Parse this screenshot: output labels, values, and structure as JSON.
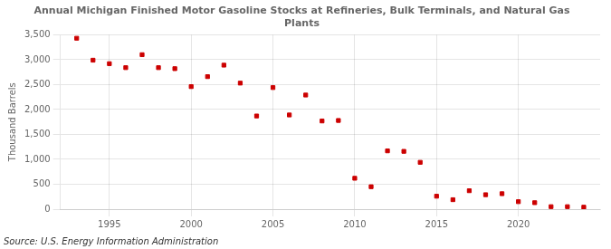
{
  "chart_data": {
    "type": "scatter",
    "title": "Annual Michigan Finished Motor Gasoline Stocks at Refineries, Bulk Terminals, and Natural Gas\nPlants",
    "y_label": "Thousand Barrels",
    "source": "Source: U.S. Energy Information Administration",
    "x": [
      1993,
      1994,
      1995,
      1996,
      1997,
      1998,
      1999,
      2000,
      2001,
      2002,
      2003,
      2004,
      2005,
      2006,
      2007,
      2008,
      2009,
      2010,
      2011,
      2012,
      2013,
      2014,
      2015,
      2016,
      2017,
      2018,
      2019,
      2020,
      2021,
      2022,
      2023,
      2024
    ],
    "values": [
      3430,
      2990,
      2920,
      2840,
      3100,
      2840,
      2820,
      2460,
      2660,
      2890,
      2530,
      1870,
      2440,
      1890,
      2290,
      1770,
      1780,
      620,
      450,
      1170,
      1160,
      940,
      260,
      190,
      370,
      290,
      310,
      150,
      130,
      50,
      50,
      40
    ],
    "color": "#cc0000",
    "marker": "square",
    "xlim": [
      1992,
      2025
    ],
    "ylim": [
      0,
      3500
    ],
    "xticks": [
      1995,
      2000,
      2005,
      2010,
      2015,
      2020
    ],
    "yticks": [
      0,
      500,
      {
        "value": 1000,
        "label": "1,000"
      },
      {
        "value": 1500,
        "label": "1,500"
      },
      {
        "value": 2000,
        "label": "2,000"
      },
      {
        "value": 2500,
        "label": "2,500"
      },
      {
        "value": 3000,
        "label": "3,000"
      },
      {
        "value": 3500,
        "label": "3,500"
      }
    ],
    "grid": true
  }
}
